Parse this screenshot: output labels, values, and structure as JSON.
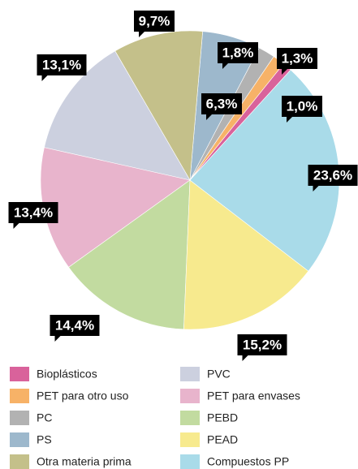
{
  "chart_data": {
    "type": "pie",
    "categories": [
      "Bioplásticos",
      "PET para otro uso",
      "PC",
      "PS",
      "Otra materia prima",
      "PVC",
      "PET para envases",
      "PEBD",
      "PEAD",
      "Compuestos PP"
    ],
    "values": [
      1.0,
      1.3,
      1.8,
      6.3,
      9.7,
      13.1,
      13.4,
      14.4,
      15.2,
      23.6
    ],
    "value_labels": [
      "1,0%",
      "1,3%",
      "1,8%",
      "6,3%",
      "9,7%",
      "13,1%",
      "13,4%",
      "14,4%",
      "15,2%",
      "23,6%"
    ],
    "colors": [
      "#d9629b",
      "#f7b267",
      "#b2b2b2",
      "#9db8cc",
      "#c4c08a",
      "#ccd0df",
      "#e8b4cc",
      "#c2dba0",
      "#f7ea8e",
      "#a9dbe9"
    ]
  }
}
